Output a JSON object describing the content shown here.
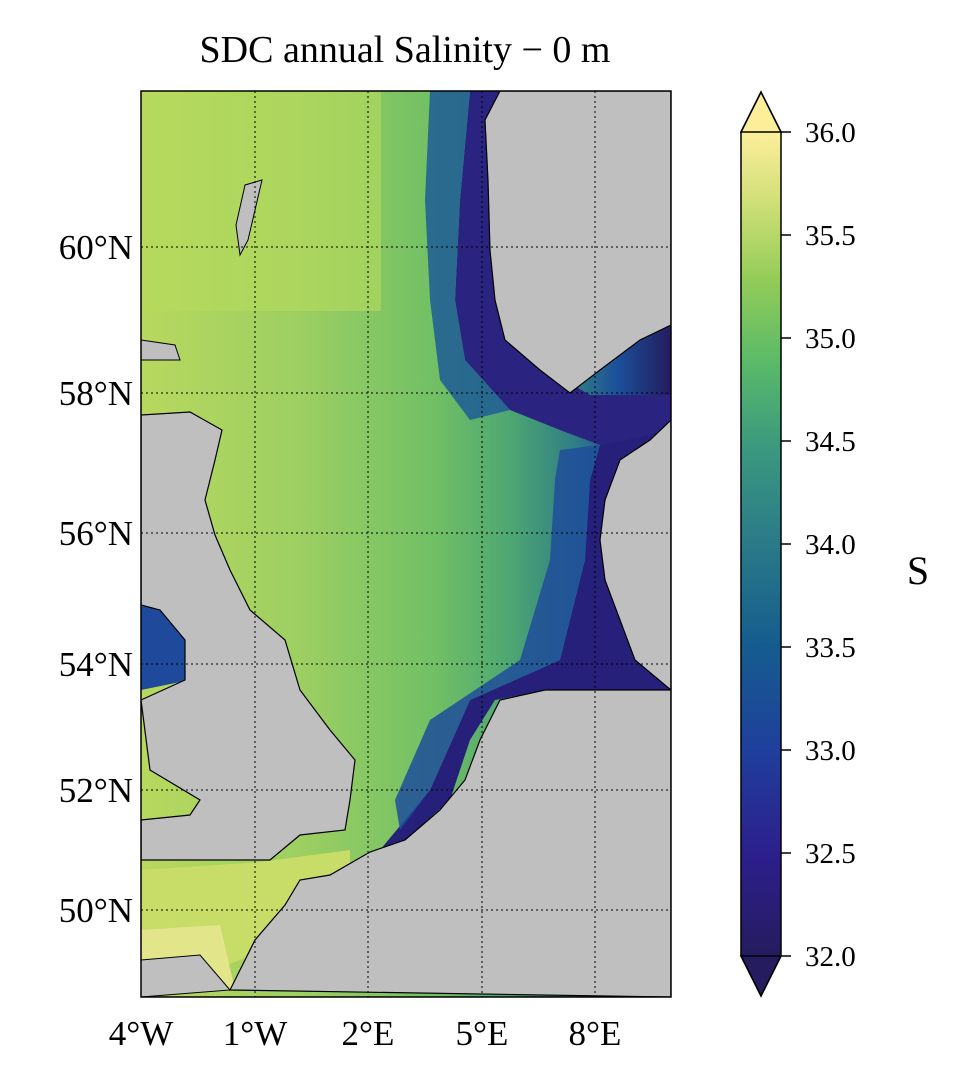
{
  "title": "SDC annual Salinity − 0 m",
  "lat_labels": [
    "60°N",
    "58°N",
    "56°N",
    "54°N",
    "52°N",
    "50°N"
  ],
  "lon_labels": [
    "4°W",
    "1°W",
    "2°E",
    "5°E",
    "8°E"
  ],
  "colorbar": {
    "label": "S",
    "ticks": [
      "36.0",
      "35.5",
      "35.0",
      "34.5",
      "34.0",
      "33.5",
      "33.0",
      "32.5",
      "32.0"
    ],
    "range": [
      32.0,
      36.0
    ],
    "extend": "both",
    "colormap": [
      "#241c5e",
      "#2d1e8c",
      "#1f3f9c",
      "#155d8e",
      "#2a7a88",
      "#3b9a7e",
      "#5aba68",
      "#93cc58",
      "#d3e07a",
      "#fdef9a"
    ]
  },
  "colors": {
    "land": "#bfbfbf",
    "coast": "#000000",
    "offshore": "#9fd063",
    "coastal_fresh": "#241c5e"
  }
}
